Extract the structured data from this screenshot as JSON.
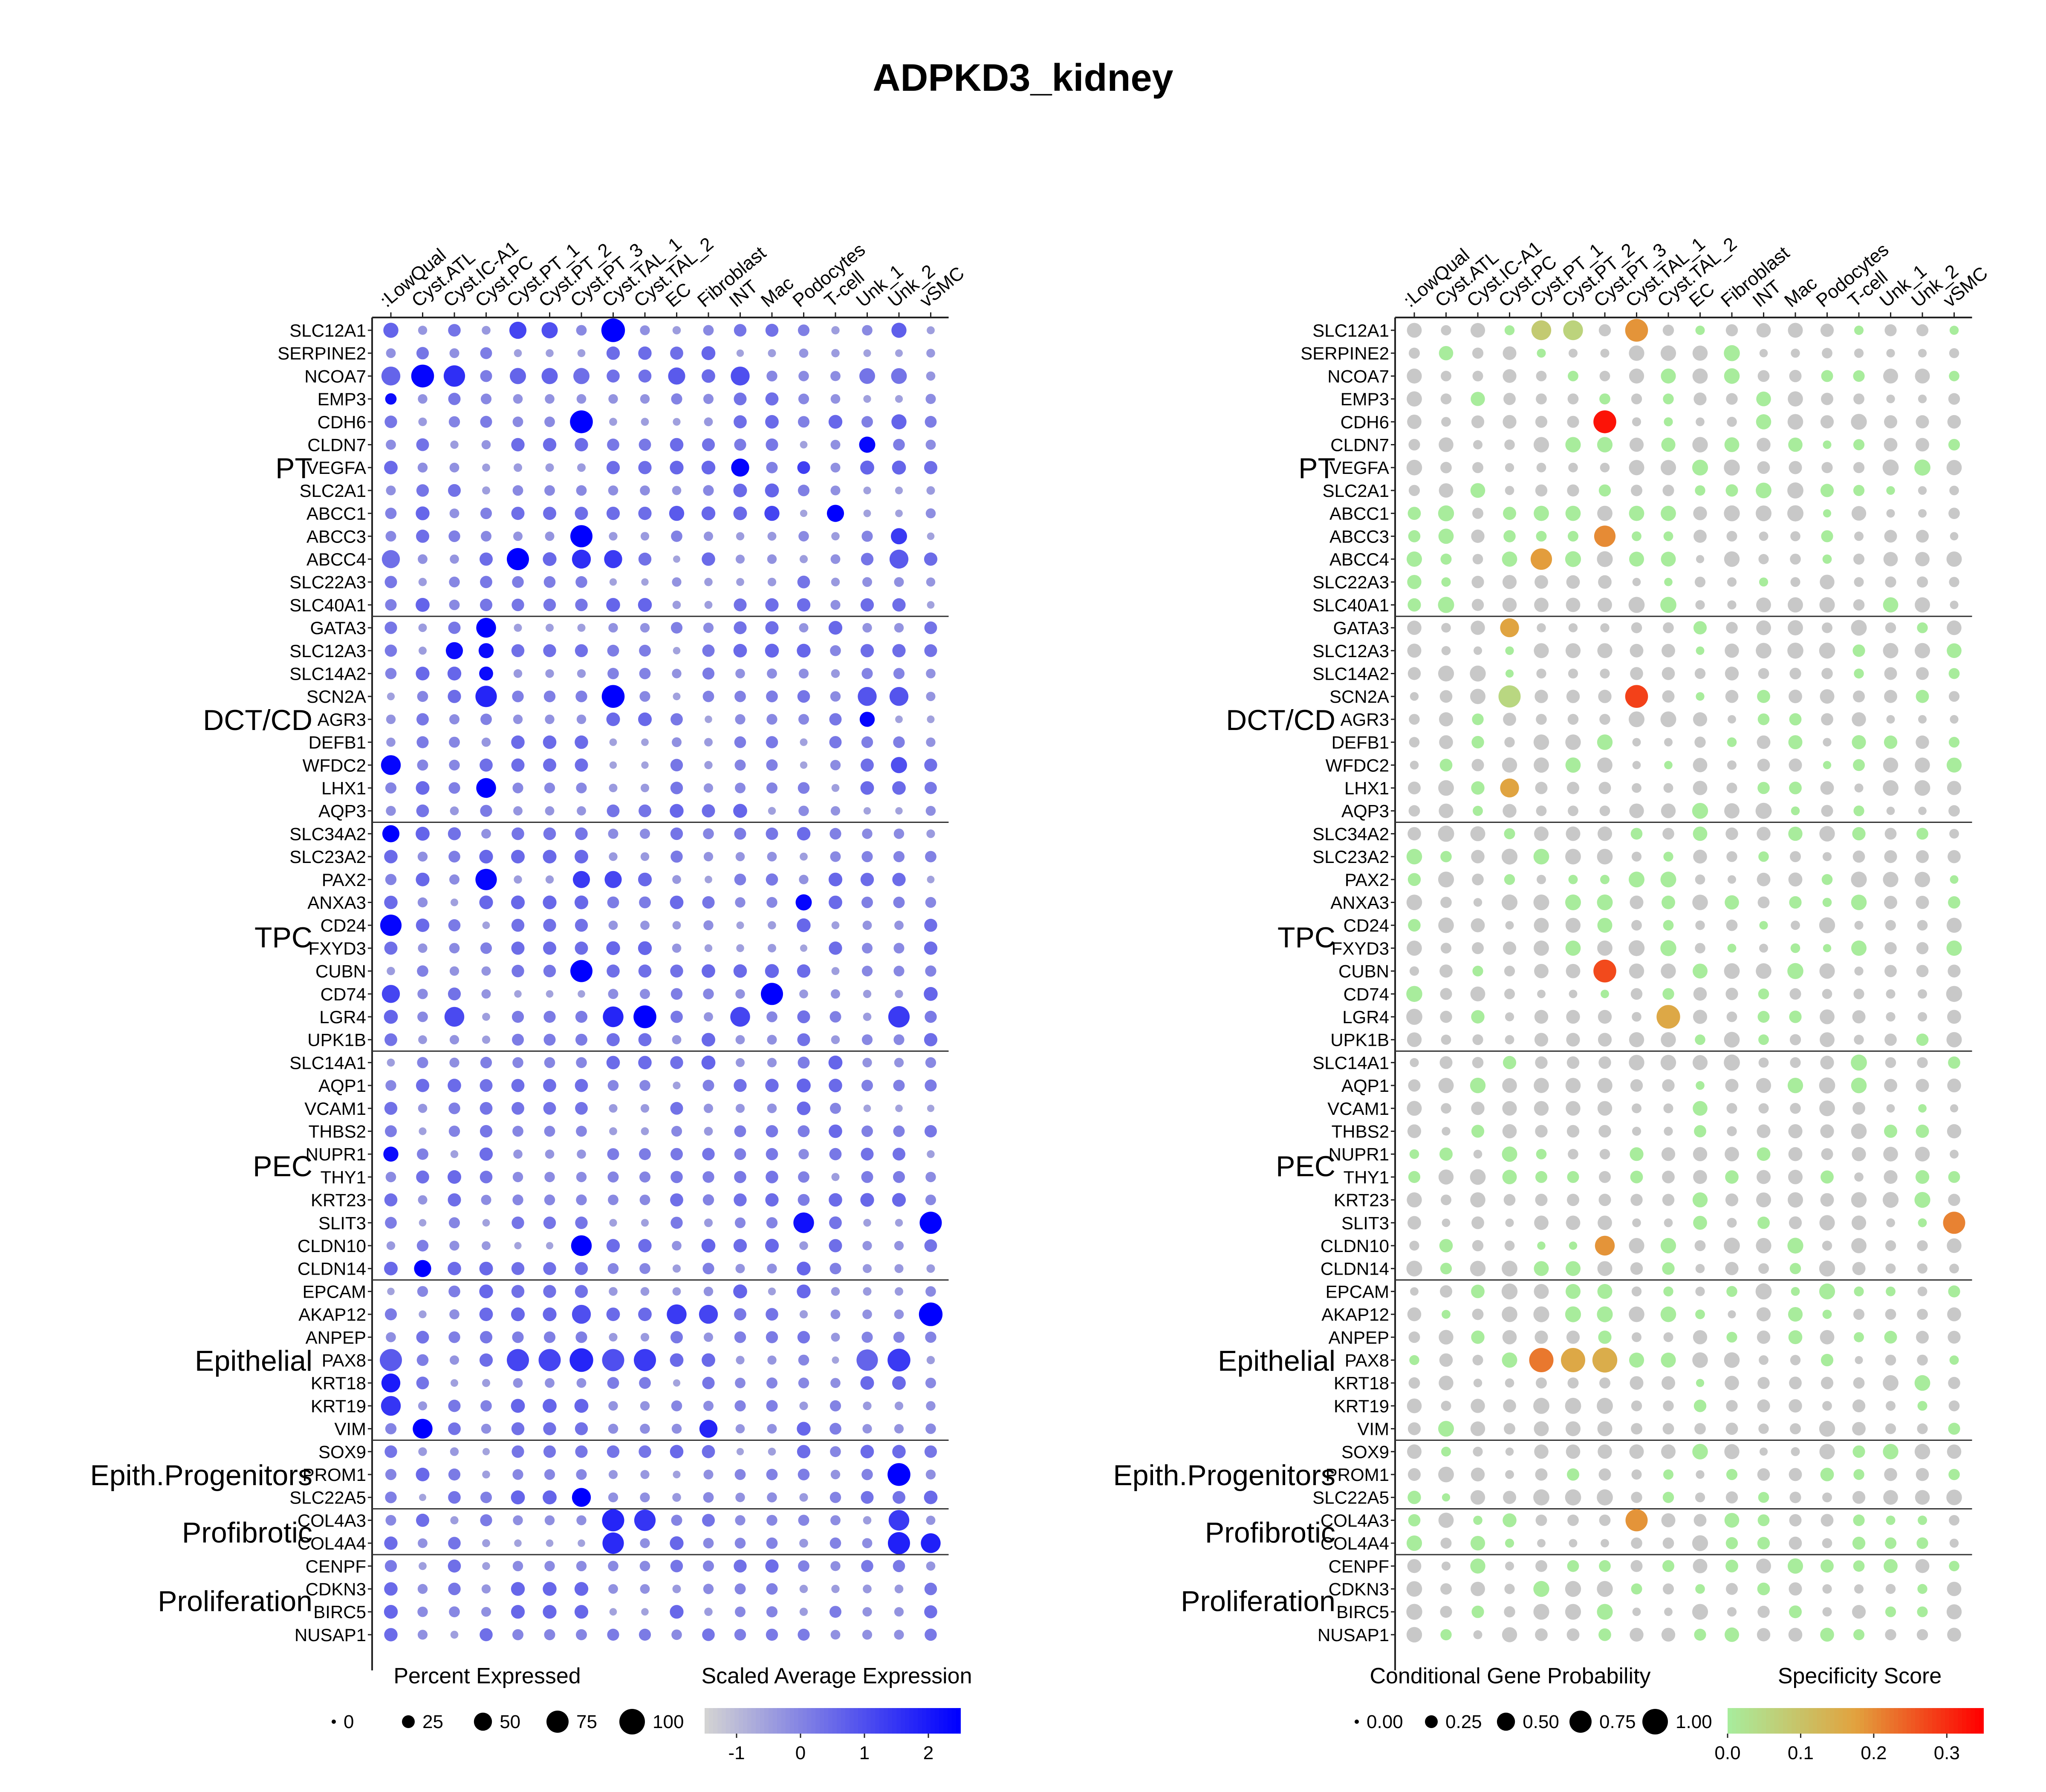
{
  "title": "ADPKD3_kidney",
  "colors": {
    "expr_low": "#d3d3d3",
    "expr_high": "#0000ff",
    "spec_low": "#a8ec9c",
    "spec_mid": "#e2a23e",
    "spec_high": "#ff0000",
    "grid_dot": "#c8c8c8"
  },
  "chart_data": [
    {
      "type": "dot",
      "columns": [
        ":LowQual",
        "Cyst.ATL",
        "Cyst.IC-A1",
        "Cyst.PC",
        "Cyst.PT_1",
        "Cyst.PT_2",
        "Cyst.PT_3",
        "Cyst.TAL_1",
        "Cyst.TAL_2",
        "EC",
        "Fibroblast",
        "INT",
        "Mac",
        "Podocytes",
        "T-cell",
        "Unk_1",
        "Unk_2",
        "vSMC"
      ],
      "groups": [
        {
          "label": "PT",
          "genes": [
            "SLC12A1",
            "SERPINE2",
            "NCOA7",
            "EMP3",
            "CDH6",
            "CLDN7",
            "VEGFA",
            "SLC2A1",
            "ABCC1",
            "ABCC3",
            "ABCC4",
            "SLC22A3",
            "SLC40A1"
          ]
        },
        {
          "label": "DCT/CD",
          "genes": [
            "GATA3",
            "SLC12A3",
            "SLC14A2",
            "SCN2A",
            "AGR3",
            "DEFB1",
            "WFDC2",
            "LHX1",
            "AQP3"
          ]
        },
        {
          "label": "TPC",
          "genes": [
            "SLC34A2",
            "SLC23A2",
            "PAX2",
            "ANXA3",
            "CD24",
            "FXYD3",
            "CUBN",
            "CD74",
            "LGR4",
            "UPK1B"
          ]
        },
        {
          "label": "PEC",
          "genes": [
            "SLC14A1",
            "AQP1",
            "VCAM1",
            "THBS2",
            "NUPR1",
            "THY1",
            "KRT23",
            "SLIT3",
            "CLDN10",
            "CLDN14"
          ]
        },
        {
          "label": "Epithelial",
          "genes": [
            "EPCAM",
            "AKAP12",
            "ANPEP",
            "PAX8",
            "KRT18",
            "KRT19",
            "VIM"
          ]
        },
        {
          "label": "Epith.Progenitors",
          "genes": [
            "SOX9",
            "PROM1",
            "SLC22A5"
          ]
        },
        {
          "label": "Profibrotic",
          "genes": [
            "COL4A3",
            "COL4A4"
          ]
        },
        {
          "label": "Proliferation",
          "genes": [
            "CENPF",
            "CDKN3",
            "BIRC5",
            "NUSAP1"
          ]
        }
      ],
      "size_legend": {
        "title": "Percent Expressed",
        "labels": [
          "0",
          "25",
          "50",
          "75",
          "100"
        ],
        "values": [
          0,
          25,
          50,
          75,
          100
        ]
      },
      "color_legend": {
        "title": "Scaled Average Expression",
        "labels": [
          "-1",
          "0",
          "1",
          "2"
        ],
        "values": [
          -1,
          0,
          1,
          2
        ],
        "range": [
          -1.5,
          2.5
        ]
      },
      "highlights": [
        {
          "gene": "SLC12A1",
          "column": "Cyst.TAL_1",
          "size": 85,
          "value": 2.5
        },
        {
          "gene": "SLC12A1",
          "column": "Cyst.PT_1",
          "size": 45,
          "value": 1.2
        },
        {
          "gene": "SLC12A1",
          "column": "Cyst.PT_2",
          "size": 40,
          "value": 1.0
        },
        {
          "gene": "SLC12A1",
          "column": ":LowQual",
          "size": 35,
          "value": 0.6
        },
        {
          "gene": "SLC12A1",
          "column": "Unk_2",
          "size": 35,
          "value": 0.7
        },
        {
          "gene": "NCOA7",
          "column": "Cyst.ATL",
          "size": 80,
          "value": 2.4
        },
        {
          "gene": "NCOA7",
          "column": "Cyst.IC-A1",
          "size": 70,
          "value": 1.6
        },
        {
          "gene": "NCOA7",
          "column": ":LowQual",
          "size": 55,
          "value": 0.6
        },
        {
          "gene": "NCOA7",
          "column": "INT",
          "size": 55,
          "value": 1.0
        },
        {
          "gene": "NCOA7",
          "column": "EC",
          "size": 45,
          "value": 0.8
        },
        {
          "gene": "NCOA7",
          "column": "Cyst.PT_1",
          "size": 40,
          "value": 0.6
        },
        {
          "gene": "NCOA7",
          "column": "Cyst.PT_2",
          "size": 40,
          "value": 0.6
        },
        {
          "gene": "NCOA7",
          "column": "Cyst.PT_3",
          "size": 40,
          "value": 0.4
        },
        {
          "gene": "NCOA7",
          "column": "Unk_1",
          "size": 38,
          "value": 0.3
        },
        {
          "gene": "NCOA7",
          "column": "Unk_2",
          "size": 38,
          "value": 0.3
        },
        {
          "gene": "EMP3",
          "column": ":LowQual",
          "size": 20,
          "value": 2.3
        },
        {
          "gene": "CDH6",
          "column": "Cyst.PT_3",
          "size": 80,
          "value": 2.5
        },
        {
          "gene": "CDH6",
          "column": "Unk_2",
          "size": 35,
          "value": 0.6
        },
        {
          "gene": "CLDN7",
          "column": "Unk_1",
          "size": 40,
          "value": 2.4
        },
        {
          "gene": "VEGFA",
          "column": "INT",
          "size": 50,
          "value": 2.4
        },
        {
          "gene": "VEGFA",
          "column": "Podocytes",
          "size": 25,
          "value": 1.3
        },
        {
          "gene": "ABCC1",
          "column": "T-cell",
          "size": 45,
          "value": 2.5
        },
        {
          "gene": "ABCC1",
          "column": "Mac",
          "size": 35,
          "value": 1.2
        },
        {
          "gene": "ABCC1",
          "column": "EC",
          "size": 35,
          "value": 0.8
        },
        {
          "gene": "ABCC3",
          "column": "Cyst.PT_3",
          "size": 75,
          "value": 2.5
        },
        {
          "gene": "ABCC3",
          "column": "Unk_2",
          "size": 40,
          "value": 1.4
        },
        {
          "gene": "ABCC4",
          "column": "Cyst.PT_1",
          "size": 75,
          "value": 2.5
        },
        {
          "gene": "ABCC4",
          "column": "Cyst.PT_3",
          "size": 55,
          "value": 1.6
        },
        {
          "gene": "ABCC4",
          "column": "Cyst.TAL_1",
          "size": 50,
          "value": 1.4
        },
        {
          "gene": "ABCC4",
          "column": "Unk_2",
          "size": 55,
          "value": 0.8
        },
        {
          "gene": "ABCC4",
          "column": ":LowQual",
          "size": 50,
          "value": 0.4
        },
        {
          "gene": "GATA3",
          "column": "Cyst.PC",
          "size": 60,
          "value": 2.5
        },
        {
          "gene": "SLC12A3",
          "column": "Cyst.IC-A1",
          "size": 45,
          "value": 2.3
        },
        {
          "gene": "SLC12A3",
          "column": "Cyst.PC",
          "size": 35,
          "value": 2.3
        },
        {
          "gene": "SLC14A2",
          "column": "Cyst.PC",
          "size": 30,
          "value": 2.3
        },
        {
          "gene": "SCN2A",
          "column": "Cyst.TAL_1",
          "size": 80,
          "value": 2.5
        },
        {
          "gene": "SCN2A",
          "column": "Cyst.PC",
          "size": 70,
          "value": 1.8
        },
        {
          "gene": "SCN2A",
          "column": "Unk_1",
          "size": 55,
          "value": 0.9
        },
        {
          "gene": "SCN2A",
          "column": "Unk_2",
          "size": 55,
          "value": 0.9
        },
        {
          "gene": "AGR3",
          "column": "Unk_1",
          "size": 35,
          "value": 2.4
        },
        {
          "gene": "WFDC2",
          "column": ":LowQual",
          "size": 60,
          "value": 2.4
        },
        {
          "gene": "WFDC2",
          "column": "Unk_2",
          "size": 40,
          "value": 1.0
        },
        {
          "gene": "LHX1",
          "column": "Cyst.PC",
          "size": 60,
          "value": 2.5
        },
        {
          "gene": "SLC34A2",
          "column": ":LowQual",
          "size": 45,
          "value": 2.5
        },
        {
          "gene": "PAX2",
          "column": "Cyst.PC",
          "size": 70,
          "value": 2.4
        },
        {
          "gene": "PAX2",
          "column": "Cyst.PT_3",
          "size": 45,
          "value": 1.4
        },
        {
          "gene": "PAX2",
          "column": "Cyst.TAL_1",
          "size": 45,
          "value": 1.2
        },
        {
          "gene": "ANXA3",
          "column": "Podocytes",
          "size": 40,
          "value": 2.4
        },
        {
          "gene": "CD24",
          "column": ":LowQual",
          "size": 70,
          "value": 2.4
        },
        {
          "gene": "CUBN",
          "column": "Cyst.PT_3",
          "size": 75,
          "value": 2.5
        },
        {
          "gene": "CD74",
          "column": "Mac",
          "size": 75,
          "value": 2.5
        },
        {
          "gene": "CD74",
          "column": ":LowQual",
          "size": 50,
          "value": 1.2
        },
        {
          "gene": "LGR4",
          "column": "Cyst.TAL_2",
          "size": 80,
          "value": 2.5
        },
        {
          "gene": "LGR4",
          "column": "Cyst.TAL_1",
          "size": 65,
          "value": 1.8
        },
        {
          "gene": "LGR4",
          "column": "Unk_2",
          "size": 70,
          "value": 1.4
        },
        {
          "gene": "LGR4",
          "column": "Cyst.IC-A1",
          "size": 60,
          "value": 1.1
        },
        {
          "gene": "LGR4",
          "column": "INT",
          "size": 60,
          "value": 1.2
        },
        {
          "gene": "SLIT3",
          "column": "vSMC",
          "size": 75,
          "value": 2.5
        },
        {
          "gene": "SLIT3",
          "column": "Podocytes",
          "size": 65,
          "value": 2.2
        },
        {
          "gene": "CLDN10",
          "column": "Cyst.PT_3",
          "size": 65,
          "value": 2.5
        },
        {
          "gene": "CLDN14",
          "column": "Cyst.ATL",
          "size": 45,
          "value": 2.5
        },
        {
          "gene": "AKAP12",
          "column": "vSMC",
          "size": 85,
          "value": 2.5
        },
        {
          "gene": "AKAP12",
          "column": "EC",
          "size": 60,
          "value": 1.4
        },
        {
          "gene": "AKAP12",
          "column": "Fibroblast",
          "size": 55,
          "value": 1.2
        },
        {
          "gene": "AKAP12",
          "column": "Cyst.PT_3",
          "size": 55,
          "value": 1.0
        },
        {
          "gene": "PAX8",
          "column": "Cyst.PT_3",
          "size": 85,
          "value": 1.8
        },
        {
          "gene": "PAX8",
          "column": "Unk_2",
          "size": 80,
          "value": 1.4
        },
        {
          "gene": "PAX8",
          "column": "Cyst.TAL_2",
          "size": 75,
          "value": 1.4
        },
        {
          "gene": "PAX8",
          "column": "Cyst.PT_1",
          "size": 75,
          "value": 1.2
        },
        {
          "gene": "PAX8",
          "column": "Cyst.PT_2",
          "size": 75,
          "value": 1.2
        },
        {
          "gene": "PAX8",
          "column": ":LowQual",
          "size": 75,
          "value": 0.8
        },
        {
          "gene": "PAX8",
          "column": "Cyst.TAL_1",
          "size": 75,
          "value": 1.0
        },
        {
          "gene": "PAX8",
          "column": "Unk_1",
          "size": 70,
          "value": 0.6
        },
        {
          "gene": "PROM1",
          "column": "Unk_2",
          "size": 80,
          "value": 2.5
        },
        {
          "gene": "SLC22A5",
          "column": "Cyst.PT_3",
          "size": 55,
          "value": 2.5
        },
        {
          "gene": "COL4A3",
          "column": "Cyst.TAL_1",
          "size": 75,
          "value": 1.8
        },
        {
          "gene": "COL4A3",
          "column": "Cyst.TAL_2",
          "size": 70,
          "value": 1.5
        },
        {
          "gene": "COL4A3",
          "column": "Unk_2",
          "size": 65,
          "value": 1.4
        },
        {
          "gene": "COL4A4",
          "column": "Unk_2",
          "size": 75,
          "value": 1.9
        },
        {
          "gene": "COL4A4",
          "column": "Cyst.TAL_1",
          "size": 70,
          "value": 1.7
        },
        {
          "gene": "COL4A4",
          "column": "vSMC",
          "size": 60,
          "value": 1.9
        },
        {
          "gene": "VIM",
          "column": "Cyst.ATL",
          "size": 60,
          "value": 2.5
        },
        {
          "gene": "VIM",
          "column": "Fibroblast",
          "size": 50,
          "value": 1.8
        },
        {
          "gene": "KRT18",
          "column": ":LowQual",
          "size": 55,
          "value": 2.0
        },
        {
          "gene": "KRT19",
          "column": ":LowQual",
          "size": 60,
          "value": 1.5
        },
        {
          "gene": "NUPR1",
          "column": ":LowQual",
          "size": 35,
          "value": 2.3
        }
      ]
    },
    {
      "type": "dot",
      "size_legend": {
        "title": "Conditional Gene Probability",
        "labels": [
          "0.00",
          "0.25",
          "0.50",
          "0.75",
          "1.00"
        ],
        "values": [
          0,
          0.25,
          0.5,
          0.75,
          1
        ]
      },
      "color_legend": {
        "title": "Specificity Score",
        "labels": [
          "0.0",
          "0.1",
          "0.2",
          "0.3"
        ],
        "values": [
          0,
          0.1,
          0.2,
          0.3
        ],
        "range": [
          0,
          0.35
        ]
      },
      "highlights": [
        {
          "gene": "SLC12A1",
          "column": "Cyst.TAL_1",
          "size": 0.8,
          "value": 0.19
        },
        {
          "gene": "SLC12A1",
          "column": "Cyst.PT_1",
          "size": 0.6,
          "value": 0.08
        },
        {
          "gene": "SLC12A1",
          "column": "Cyst.PT_2",
          "size": 0.6,
          "value": 0.06
        },
        {
          "gene": "CDH6",
          "column": "Cyst.PT_3",
          "size": 0.8,
          "value": 0.33
        },
        {
          "gene": "ABCC3",
          "column": "Cyst.PT_3",
          "size": 0.7,
          "value": 0.2
        },
        {
          "gene": "ABCC4",
          "column": "Cyst.PT_1",
          "size": 0.7,
          "value": 0.18
        },
        {
          "gene": "GATA3",
          "column": "Cyst.PC",
          "size": 0.55,
          "value": 0.17
        },
        {
          "gene": "LHX1",
          "column": "Cyst.PC",
          "size": 0.55,
          "value": 0.17
        },
        {
          "gene": "SCN2A",
          "column": "Cyst.TAL_1",
          "size": 0.8,
          "value": 0.28
        },
        {
          "gene": "SCN2A",
          "column": "Cyst.PC",
          "size": 0.75,
          "value": 0.05
        },
        {
          "gene": "CUBN",
          "column": "Cyst.PT_3",
          "size": 0.8,
          "value": 0.27
        },
        {
          "gene": "LGR4",
          "column": "Cyst.TAL_2",
          "size": 0.85,
          "value": 0.16
        },
        {
          "gene": "CLDN10",
          "column": "Cyst.PT_3",
          "size": 0.6,
          "value": 0.19
        },
        {
          "gene": "SLIT3",
          "column": "vSMC",
          "size": 0.75,
          "value": 0.21
        },
        {
          "gene": "PAX8",
          "column": "Cyst.PT_1",
          "size": 0.9,
          "value": 0.22
        },
        {
          "gene": "PAX8",
          "column": "Cyst.PT_2",
          "size": 0.9,
          "value": 0.16
        },
        {
          "gene": "PAX8",
          "column": "Cyst.PT_3",
          "size": 0.95,
          "value": 0.15
        },
        {
          "gene": "COL4A3",
          "column": "Cyst.TAL_1",
          "size": 0.75,
          "value": 0.19
        }
      ]
    }
  ]
}
